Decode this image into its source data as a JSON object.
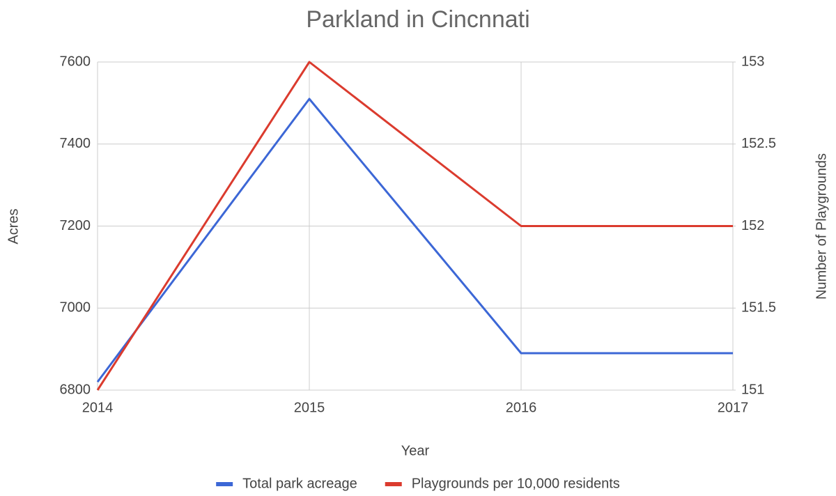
{
  "chart_data": {
    "type": "line",
    "title": "Parkland in Cincnnati",
    "x_label": "Year",
    "y_label": "Acres",
    "y2_label": "Number of Playgrounds",
    "x": [
      2014,
      2015,
      2016,
      2017
    ],
    "xlim": [
      2014,
      2017
    ],
    "xticks": [
      2014,
      2015,
      2016,
      2017
    ],
    "ylim": [
      6800,
      7600
    ],
    "yticks": [
      6800,
      7000,
      7200,
      7400,
      7600
    ],
    "y2lim": [
      151,
      153
    ],
    "y2ticks": [
      151,
      151.5,
      152,
      152.5,
      153
    ],
    "grid": true,
    "legend": "bottom",
    "series": [
      {
        "name": "Total park acreage",
        "color": "#3c67d6",
        "values": [
          6820,
          7510,
          6890,
          6890
        ]
      },
      {
        "name": "Playgrounds per 10,000 residents",
        "color": "#db3b2e",
        "axis": "y2",
        "values": [
          151,
          153,
          152,
          152
        ]
      }
    ]
  }
}
